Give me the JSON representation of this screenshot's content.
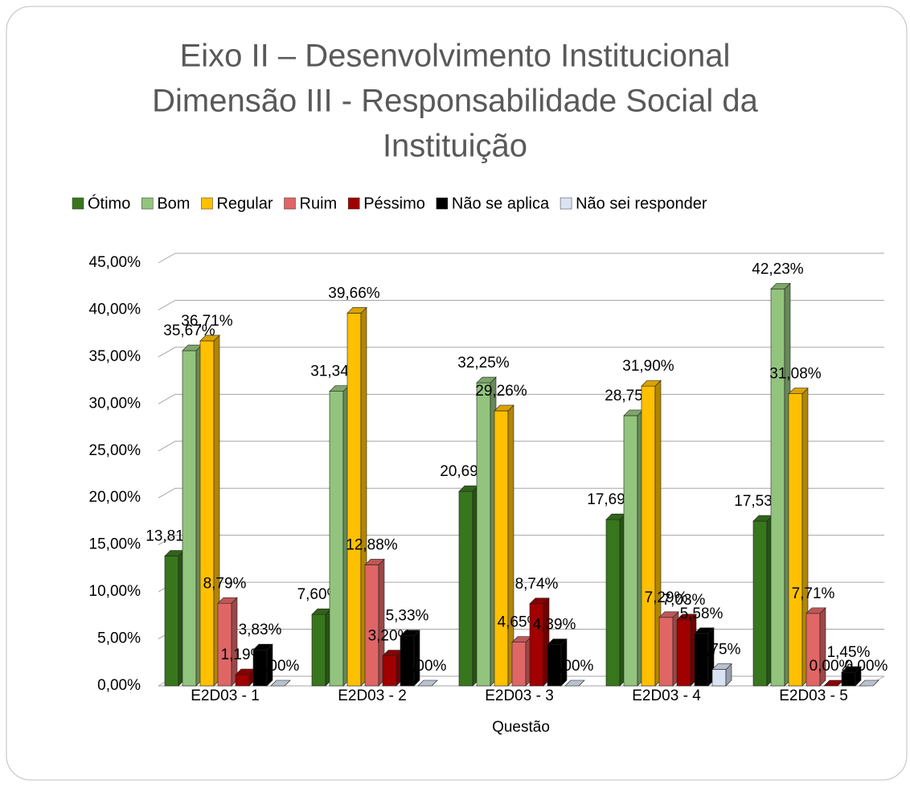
{
  "chart_data": {
    "type": "bar3d",
    "title": "Eixo II – Desenvolvimento Institucional",
    "title_lines": [
      "Eixo II – Desenvolvimento Institucional",
      "Dimensão III - Responsabilidade Social da",
      "Instituição"
    ],
    "x_label": "Questão",
    "categories": [
      "E2D03 - 1",
      "E2D03 - 2",
      "E2D03 - 3",
      "E2D03 - 4",
      "E2D03 - 5"
    ],
    "series": [
      {
        "name": "Ótimo",
        "color": "#38761d",
        "values": [
          13.81,
          7.6,
          20.69,
          17.69,
          17.53
        ],
        "value_labels": [
          "13,81%",
          "7,60%",
          "20,69%",
          "17,69%",
          "17,53%"
        ]
      },
      {
        "name": "Bom",
        "color": "#93c47d",
        "values": [
          35.67,
          31.34,
          32.25,
          28.75,
          42.23
        ],
        "value_labels": [
          "35,67%",
          "31,34%",
          "32,25%",
          "28,75%",
          "42,23%"
        ]
      },
      {
        "name": "Regular",
        "color": "#ffc000",
        "values": [
          36.71,
          39.66,
          29.26,
          31.9,
          31.08
        ],
        "value_labels": [
          "36,71%",
          "39,66%",
          "29,26%",
          "31,90%",
          "31,08%"
        ]
      },
      {
        "name": "Ruim",
        "color": "#e06666",
        "values": [
          8.79,
          12.88,
          4.65,
          7.29,
          7.71
        ],
        "value_labels": [
          "8,79%",
          "12,88%",
          "4,65%",
          "7,29%",
          "7,71%"
        ]
      },
      {
        "name": "Péssimo",
        "color": "#a00000",
        "values": [
          1.19,
          3.2,
          8.74,
          7.03,
          0.0
        ],
        "value_labels": [
          "1,19%",
          "3,20%",
          "8,74%",
          "7,03%",
          "0,00%"
        ]
      },
      {
        "name": "Não se aplica",
        "color": "#000000",
        "values": [
          3.83,
          5.33,
          4.39,
          5.58,
          1.45
        ],
        "value_labels": [
          "3,83%",
          "5,33%",
          "4,39%",
          "5,58%",
          "1,45%"
        ]
      },
      {
        "name": "Não sei responder",
        "color": "#dae3f3",
        "values": [
          0.0,
          0.0,
          0.0,
          1.75,
          0.0
        ],
        "value_labels": [
          "0,00%",
          "0,00%",
          "0,00%",
          "1,75%",
          "0,00%"
        ]
      }
    ],
    "ylim": [
      0,
      45
    ],
    "yticks": [
      {
        "value": 0,
        "label": "0,00%"
      },
      {
        "value": 5,
        "label": "5,00%"
      },
      {
        "value": 10,
        "label": "10,00%"
      },
      {
        "value": 15,
        "label": "15,00%"
      },
      {
        "value": 20,
        "label": "20,00%"
      },
      {
        "value": 25,
        "label": "25,00%"
      },
      {
        "value": 30,
        "label": "30,00%"
      },
      {
        "value": 35,
        "label": "35,00%"
      },
      {
        "value": 40,
        "label": "40,00%"
      },
      {
        "value": 45,
        "label": "45,00%"
      }
    ],
    "grid": true,
    "legend": "top"
  }
}
